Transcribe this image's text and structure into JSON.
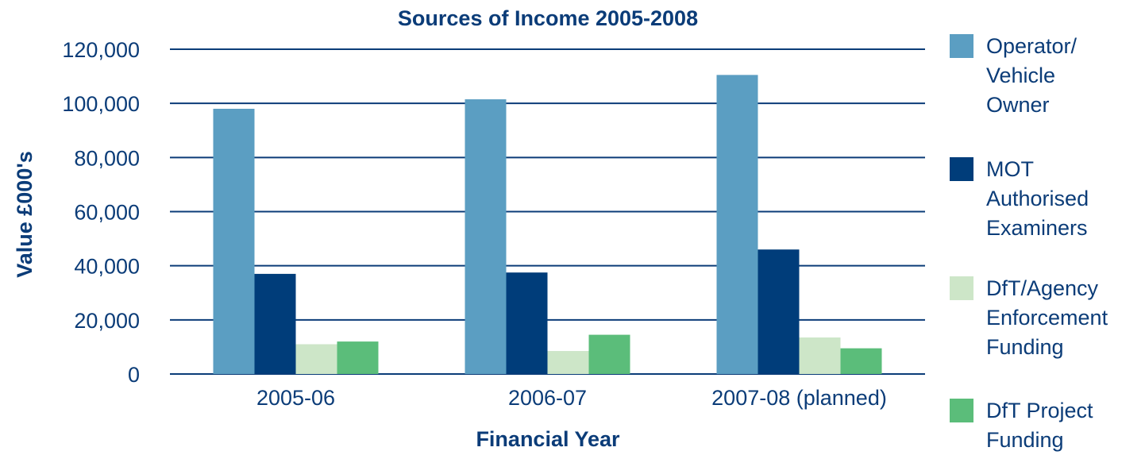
{
  "chart_data": {
    "type": "bar",
    "title": "Sources of Income 2005-2008",
    "xlabel": "Financial Year",
    "ylabel": "Value £000's",
    "ylim": [
      0,
      120000
    ],
    "yticks": [
      0,
      20000,
      40000,
      60000,
      80000,
      100000,
      120000
    ],
    "ytick_labels": [
      "0",
      "20,000",
      "40,000",
      "60,000",
      "80,000",
      "100,000",
      "120,000"
    ],
    "categories": [
      "2005-06",
      "2006-07",
      "2007-08 (planned)"
    ],
    "grid": true,
    "legend_position": "right",
    "series": [
      {
        "name": "Operator/\nVehicle\nOwner",
        "color": "#5b9ec2",
        "values": [
          98000,
          101500,
          110500
        ]
      },
      {
        "name": "MOT\nAuthorised\nExaminers",
        "color": "#003d7a",
        "values": [
          37000,
          37500,
          46000
        ]
      },
      {
        "name": "DfT/Agency\nEnforcement\nFunding",
        "color": "#cde6c8",
        "values": [
          11000,
          8500,
          13500
        ]
      },
      {
        "name": "DfT Project\nFunding",
        "color": "#5bbd7a",
        "values": [
          12000,
          14500,
          9500
        ]
      }
    ],
    "colors": {
      "text": "#0b3c78",
      "axis_title": "#1f4e79",
      "grid": "#0b3c78"
    }
  }
}
